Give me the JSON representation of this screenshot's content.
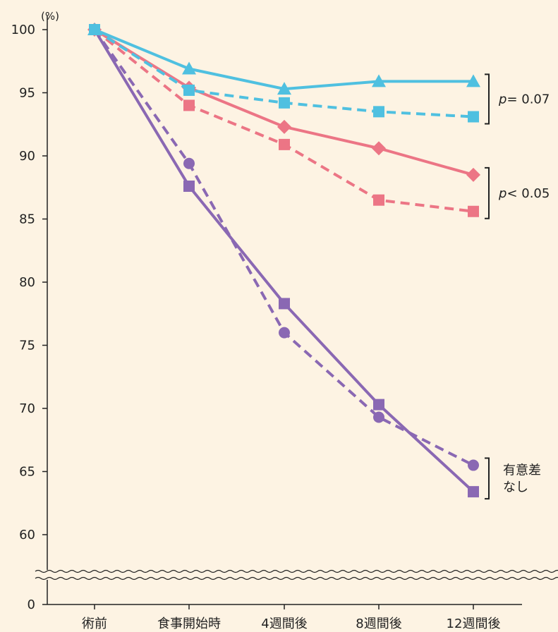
{
  "chart_data": {
    "type": "line",
    "y_unit_label": "(%)",
    "categories": [
      "術前",
      "食事開始時",
      "4週間後",
      "8週間後",
      "12週間後"
    ],
    "y_ticks": [
      "100",
      "95",
      "90",
      "85",
      "80",
      "75",
      "70",
      "65",
      "60",
      "0"
    ],
    "y_tick_values": [
      100,
      95,
      90,
      85,
      80,
      75,
      70,
      65,
      60,
      0
    ],
    "ylim": [
      60,
      100
    ],
    "axis_break": true,
    "grid": false,
    "series": [
      {
        "color": "#4FC0E0",
        "line_style": "solid",
        "marker": "triangle",
        "values": [
          100,
          96.9,
          95.3,
          95.9,
          95.9
        ]
      },
      {
        "color": "#4FC0E0",
        "line_style": "dashed",
        "marker": "square",
        "values": [
          100,
          95.2,
          94.2,
          93.5,
          93.1
        ]
      },
      {
        "color": "#EC7585",
        "line_style": "solid",
        "marker": "diamond",
        "values": [
          100,
          95.4,
          92.3,
          90.6,
          88.5
        ]
      },
      {
        "color": "#EC7585",
        "line_style": "dashed",
        "marker": "square",
        "values": [
          100,
          94.0,
          90.9,
          86.5,
          85.6
        ]
      },
      {
        "color": "#8A68B3",
        "line_style": "solid",
        "marker": "square",
        "values": [
          100,
          87.6,
          78.3,
          70.3,
          63.4
        ]
      },
      {
        "color": "#8A68B3",
        "line_style": "dashed",
        "marker": "circle",
        "values": [
          100,
          89.4,
          76.0,
          69.3,
          65.5
        ]
      }
    ],
    "annotations": [
      {
        "label_prefix": "p",
        "label_rest": "= 0.07",
        "y_range": [
          93.1,
          95.9
        ]
      },
      {
        "label_prefix": "p",
        "label_rest": "< 0.05",
        "y_range": [
          85.6,
          88.5
        ]
      },
      {
        "lines": [
          "有意差",
          "なし"
        ],
        "y_range": [
          63.4,
          65.5
        ]
      }
    ],
    "colors": {
      "background": "#FDF3E3",
      "axis": "#222222"
    }
  }
}
